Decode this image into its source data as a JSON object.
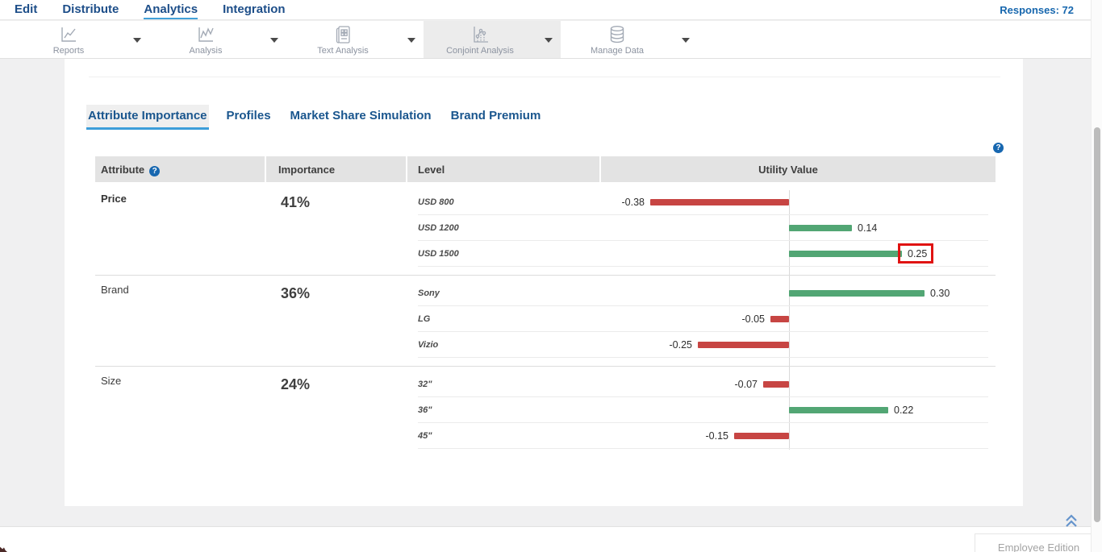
{
  "nav": {
    "items": [
      {
        "label": "Edit",
        "active": false
      },
      {
        "label": "Distribute",
        "active": false
      },
      {
        "label": "Analytics",
        "active": true
      },
      {
        "label": "Integration",
        "active": false
      }
    ],
    "responses": "Responses: 72"
  },
  "toolbar": {
    "items": [
      {
        "label": "Reports",
        "icon": "reports-chart-icon",
        "selected": false
      },
      {
        "label": "Analysis",
        "icon": "analysis-chart-icon",
        "selected": false
      },
      {
        "label": "Text Analysis",
        "icon": "text-analysis-icon",
        "selected": false
      },
      {
        "label": "Conjoint Analysis",
        "icon": "conjoint-chart-icon",
        "selected": true
      },
      {
        "label": "Manage Data",
        "icon": "database-icon",
        "selected": false
      }
    ]
  },
  "tabs": [
    {
      "label": "Attribute Importance",
      "active": true
    },
    {
      "label": "Profiles",
      "active": false
    },
    {
      "label": "Market Share Simulation",
      "active": false
    },
    {
      "label": "Brand Premium",
      "active": false
    }
  ],
  "table": {
    "headers": {
      "attribute": "Attribute",
      "importance": "Importance",
      "level": "Level",
      "utility": "Utility Value"
    },
    "help_icon": "?",
    "groups": [
      {
        "attribute": "Price",
        "bold": true,
        "importance": "41%",
        "levels": [
          {
            "label": "USD 800",
            "value": -0.38,
            "display": "-0.38",
            "highlight": false
          },
          {
            "label": "USD 1200",
            "value": 0.14,
            "display": "0.14",
            "highlight": false
          },
          {
            "label": "USD 1500",
            "value": 0.25,
            "display": "0.25",
            "highlight": true
          }
        ]
      },
      {
        "attribute": "Brand",
        "bold": false,
        "importance": "36%",
        "levels": [
          {
            "label": "Sony",
            "value": 0.3,
            "display": "0.30",
            "highlight": false
          },
          {
            "label": "LG",
            "value": -0.05,
            "display": "-0.05",
            "highlight": false
          },
          {
            "label": "Vizio",
            "value": -0.25,
            "display": "-0.25",
            "highlight": false
          }
        ]
      },
      {
        "attribute": "Size",
        "bold": false,
        "importance": "24%",
        "levels": [
          {
            "label": "32\"",
            "value": -0.07,
            "display": "-0.07",
            "highlight": false
          },
          {
            "label": "36\"",
            "value": 0.22,
            "display": "0.22",
            "highlight": false
          },
          {
            "label": "45\"",
            "value": -0.15,
            "display": "-0.15",
            "highlight": false
          }
        ]
      }
    ]
  },
  "footer": {
    "edition": "Employee Edition"
  },
  "colors": {
    "positive_bar": "#52a674",
    "negative_bar": "#c74543",
    "annotation": "#e01312",
    "nav_text": "#1d4e89",
    "active_underline": "#3d9ed9",
    "responses_text": "#1767ae"
  }
}
